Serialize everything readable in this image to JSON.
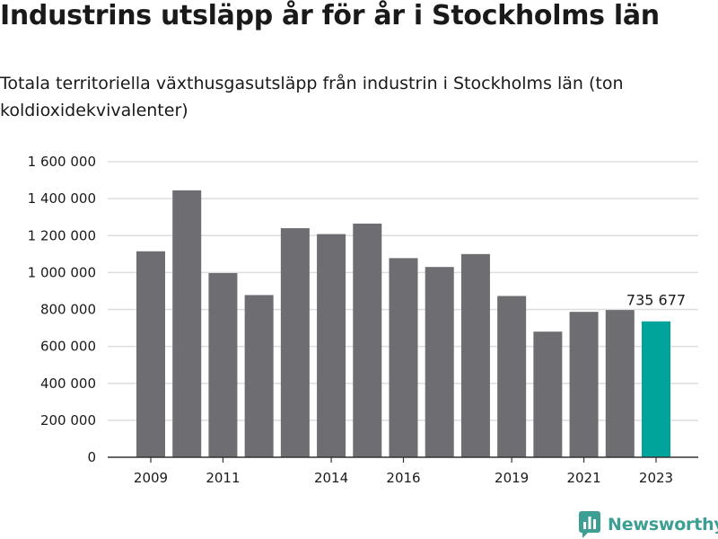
{
  "header": {
    "title": "Industrins utsläpp år för år i Stockholms län",
    "subtitle": "Totala territoriella växthusgasutsläpp från industrin i Stockholms län (ton koldioxidekvivalenter)"
  },
  "logo": {
    "text": "Newsworthy",
    "icon": "newsworthy-logo-icon",
    "color": "#3d9e93"
  },
  "colors": {
    "bar": "#6d6d72",
    "highlight": "#00a49a",
    "grid": "#dddddd",
    "axis": "#333333"
  },
  "chart_data": {
    "type": "bar",
    "x": [
      2009,
      2010,
      2011,
      2012,
      2013,
      2014,
      2015,
      2016,
      2017,
      2018,
      2019,
      2020,
      2021,
      2022,
      2023
    ],
    "values": [
      1115000,
      1445000,
      997000,
      878000,
      1240000,
      1208000,
      1265000,
      1078000,
      1030000,
      1100000,
      873000,
      680000,
      787000,
      797000,
      735677
    ],
    "highlight_index": 14,
    "highlight_label": "735 677",
    "ylim": [
      0,
      1600000
    ],
    "yticks": [
      0,
      200000,
      400000,
      600000,
      800000,
      1000000,
      1200000,
      1400000,
      1600000
    ],
    "ytick_labels": [
      "0",
      "200 000",
      "400 000",
      "600 000",
      "800 000",
      "1 000 000",
      "1 200 000",
      "1 400 000",
      "1 600 000"
    ],
    "xtick_labels": [
      "2009",
      "2011",
      "2014",
      "2016",
      "2019",
      "2021",
      "2023"
    ],
    "grid": true,
    "legend": "none"
  }
}
